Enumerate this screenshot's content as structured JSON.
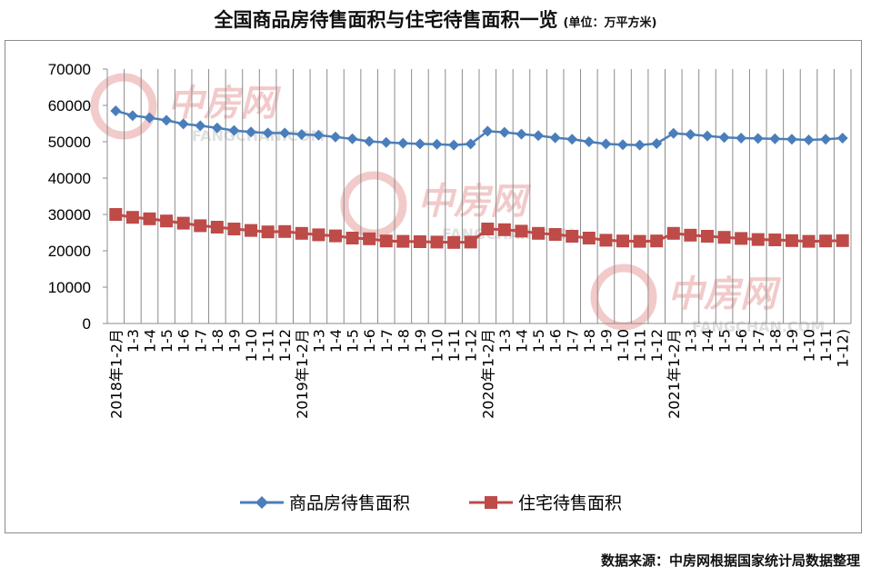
{
  "title": {
    "main": "全国商品房待售面积与住宅待售面积一览",
    "unit": "(单位：万平方米)"
  },
  "source": "数据来源：中房网根据国家统计局数据整理",
  "watermark": {
    "brand": "中房网",
    "site": "FANGCHAN.COM",
    "color": "#e8a0a0"
  },
  "chart_data": {
    "type": "line",
    "categories": [
      "1-2月",
      "1-3",
      "1-4",
      "1-5",
      "1-6",
      "1-7",
      "1-8",
      "1-9",
      "1-10",
      "1-11",
      "1-12",
      "1-2月",
      "1-3",
      "1-4",
      "1-5",
      "1-6",
      "1-7",
      "1-8",
      "1-9",
      "1-10",
      "1-11",
      "1-12",
      "1-2月",
      "1-3",
      "1-4",
      "1-5",
      "1-6",
      "1-7",
      "1-8",
      "1-9",
      "1-10",
      "1-11",
      "1-12",
      "1-2月",
      "1-3",
      "1-4",
      "1-5",
      "1-6",
      "1-7",
      "1-8",
      "1-9",
      "1-10",
      "1-11",
      "1-12)"
    ],
    "year_labels": [
      {
        "index": 0,
        "label": "2018年"
      },
      {
        "index": 11,
        "label": "2019年"
      },
      {
        "index": 22,
        "label": "2020年"
      },
      {
        "index": 33,
        "label": "2021年"
      }
    ],
    "series": [
      {
        "name": "商品房待售面积",
        "color": "#4a7ebb",
        "marker": "diamond",
        "values": [
          58500,
          57200,
          56600,
          55900,
          54900,
          54400,
          53800,
          53100,
          52700,
          52400,
          52400,
          52000,
          51800,
          51300,
          50800,
          50100,
          49800,
          49600,
          49400,
          49300,
          49100,
          49400,
          52900,
          52600,
          52100,
          51700,
          51100,
          50700,
          50000,
          49400,
          49200,
          49100,
          49500,
          52300,
          52000,
          51600,
          51200,
          51000,
          50900,
          50800,
          50700,
          50500,
          50700,
          51000
        ]
      },
      {
        "name": "住宅待售面积",
        "color": "#be4b48",
        "marker": "square",
        "values": [
          30000,
          29200,
          28800,
          28200,
          27600,
          26900,
          26500,
          26000,
          25600,
          25200,
          25300,
          24800,
          24400,
          24100,
          23500,
          23300,
          22700,
          22600,
          22500,
          22400,
          22300,
          22400,
          26000,
          25800,
          25400,
          24800,
          24500,
          24000,
          23500,
          22900,
          22700,
          22600,
          22700,
          24800,
          24300,
          24000,
          23700,
          23400,
          23100,
          23000,
          22800,
          22600,
          22700,
          22800
        ]
      }
    ],
    "yaxis": {
      "min": 0,
      "max": 70000,
      "step": 10000,
      "ticks": [
        "0",
        "10000",
        "20000",
        "30000",
        "40000",
        "50000",
        "60000",
        "70000"
      ]
    },
    "grid": "vertical",
    "legend": "bottom"
  }
}
